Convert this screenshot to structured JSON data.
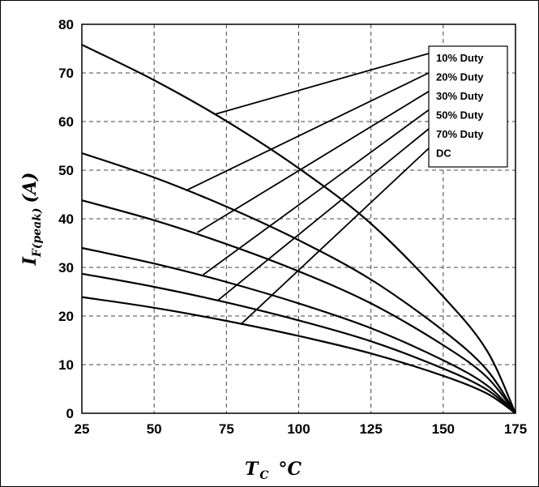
{
  "chart_data": {
    "type": "line",
    "xlabel": {
      "main": "T",
      "sub": "C",
      "unit": "°C"
    },
    "ylabel": {
      "main": "I",
      "sub": "F(peak)",
      "unit": "(A)"
    },
    "xlim": [
      25,
      175
    ],
    "ylim": [
      0,
      80
    ],
    "xticks": [
      25,
      50,
      75,
      100,
      125,
      150,
      175
    ],
    "yticks": [
      0,
      10,
      20,
      30,
      40,
      50,
      60,
      70,
      80
    ],
    "grid": true,
    "grid_style": "dashed",
    "legend_position": "top-right",
    "series": [
      {
        "name": "10% Duty",
        "x": [
          25,
          50,
          75,
          100,
          125,
          150,
          165,
          175
        ],
        "values": [
          75.8,
          68.5,
          60.1,
          50.4,
          39.0,
          24.0,
          13.0,
          0
        ]
      },
      {
        "name": "20% Duty",
        "x": [
          25,
          50,
          75,
          100,
          125,
          150,
          165,
          175
        ],
        "values": [
          53.5,
          48.5,
          42.5,
          35.6,
          27.5,
          17.0,
          9.0,
          0
        ]
      },
      {
        "name": "30% Duty",
        "x": [
          25,
          50,
          75,
          100,
          125,
          150,
          165,
          175
        ],
        "values": [
          43.8,
          39.7,
          34.8,
          29.2,
          22.6,
          14.0,
          7.5,
          0
        ]
      },
      {
        "name": "50% Duty",
        "x": [
          25,
          50,
          75,
          100,
          125,
          150,
          165,
          175
        ],
        "values": [
          34.0,
          30.8,
          27.0,
          22.6,
          17.5,
          10.9,
          5.8,
          0
        ]
      },
      {
        "name": "70% Duty",
        "x": [
          25,
          50,
          75,
          100,
          125,
          150,
          165,
          175
        ],
        "values": [
          28.7,
          26.0,
          22.8,
          19.1,
          14.8,
          9.2,
          4.9,
          0
        ]
      },
      {
        "name": "DC",
        "x": [
          25,
          50,
          75,
          100,
          125,
          150,
          165,
          175
        ],
        "values": [
          23.9,
          21.7,
          19.0,
          15.9,
          12.3,
          7.7,
          4.1,
          0
        ]
      }
    ],
    "legend_leaders": [
      {
        "series": "10% Duty",
        "from": [
          71,
          61.5
        ],
        "to": [
          145,
          74
        ]
      },
      {
        "series": "20% Duty",
        "from": [
          61,
          45.8
        ],
        "to": [
          145,
          70
        ]
      },
      {
        "series": "30% Duty",
        "from": [
          65,
          37.2
        ],
        "to": [
          145,
          66.2
        ]
      },
      {
        "series": "50% Duty",
        "from": [
          67,
          28.5
        ],
        "to": [
          145,
          62.4
        ]
      },
      {
        "series": "70% Duty",
        "from": [
          72,
          23.2
        ],
        "to": [
          145,
          58.5
        ]
      },
      {
        "series": "DC",
        "from": [
          80,
          18.3
        ],
        "to": [
          145,
          54.5
        ]
      }
    ]
  }
}
